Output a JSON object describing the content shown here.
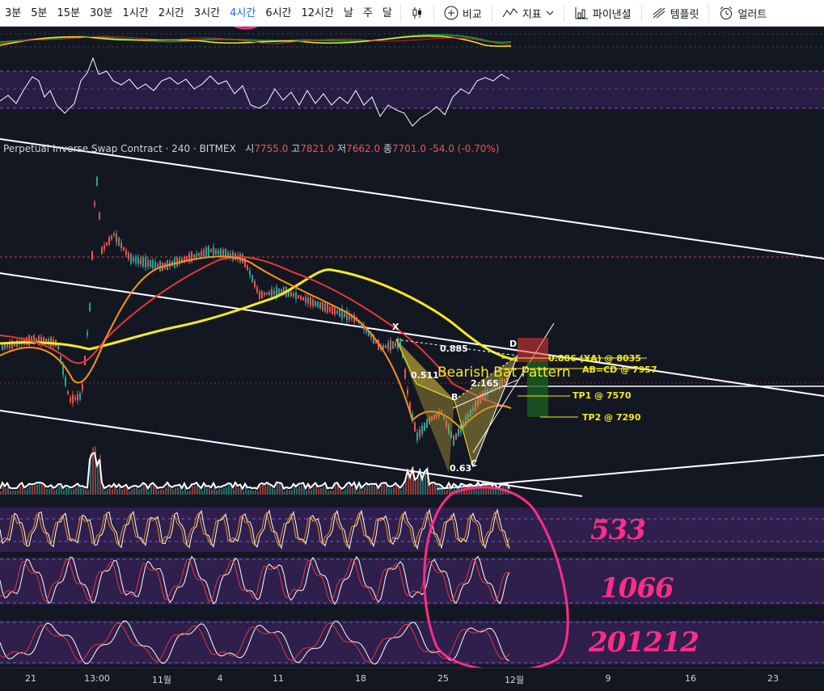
{
  "toolbar": {
    "intervals": [
      "3분",
      "5분",
      "15분",
      "30분",
      "1시간",
      "2시간",
      "3시간",
      "4시간",
      "6시간",
      "12시간",
      "날",
      "주",
      "달"
    ],
    "active_interval": "4시간",
    "compare_label": "비교",
    "indicators_label": "지표",
    "financials_label": "파이낸셜",
    "templates_label": "템플릿",
    "alert_label": "얼러트"
  },
  "legend": {
    "symbol": "Perpetual Inverse Swap Contract · 240 · BITMEX",
    "open_label": "시",
    "open": "7755.0",
    "high_label": "고",
    "high": "7821.0",
    "low_label": "저",
    "low": "7662.0",
    "close_label": "종",
    "close": "7701.0",
    "change": "-54.0 (-0.70%)"
  },
  "pattern": {
    "title": "Bearish Bat Pattern",
    "point_x": "X",
    "point_a": "A",
    "point_b": "B",
    "point_c": "C",
    "point_d": "D",
    "ratio_xb": "0.511",
    "ratio_xd": "0.885",
    "ratio_ac": "0.63",
    "ratio_bd": "2.165",
    "target_a": "0.886 (XA) @ 8035",
    "target_cd": "AB=CD @ 7957",
    "tp1": "TP1 @ 7570",
    "tp2": "TP2 @ 7290"
  },
  "xaxis": [
    "21",
    "13:00",
    "11월",
    "4",
    "11",
    "18",
    "25",
    "12월",
    "9",
    "16",
    "23"
  ],
  "annotations": {
    "circle_label": "4",
    "note1": "533",
    "note2": "1066",
    "note3": "201212"
  },
  "colors": {
    "background": "#131722",
    "panel_purple": "#2e1f4d",
    "ma_yellow": "#f7ea1b",
    "ma_orange": "#f7931a",
    "ma_red": "#e53935",
    "handwriting": "#ff2d87",
    "pattern_fill": "#b09a3a"
  }
}
